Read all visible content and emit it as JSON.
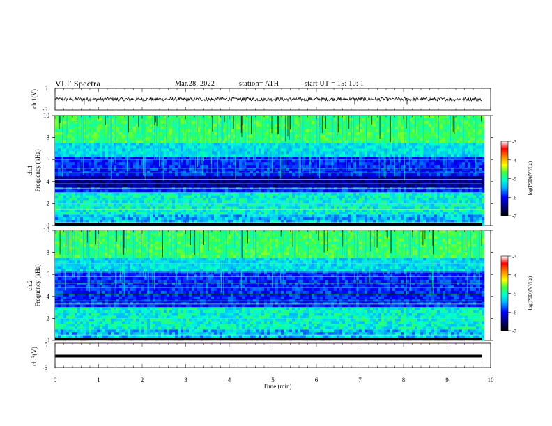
{
  "header": {
    "title": "VLF  Spectra",
    "date": "Mar.28, 2022",
    "station": "station= ATH",
    "start": "start  UT  =    15: 10: 1"
  },
  "chart_data": [
    {
      "type": "line",
      "panel": "ch1-waveform",
      "ylabel": "ch.1(V)",
      "ylim": [
        -5,
        5
      ],
      "yticks": [
        "5",
        "-5"
      ],
      "series": [
        {
          "values_description_only": false,
          "mean": 0.0,
          "amplitude": 0.8,
          "spikes_at_min": [
            0.67,
            3.72,
            6.88,
            8.08
          ]
        }
      ],
      "line_color": "#000000"
    },
    {
      "type": "heatmap",
      "panel": "ch1-spectrogram",
      "ylabel": "ch.1\nFrequency (kHz)",
      "ylim": [
        0,
        10
      ],
      "yticks": [
        "0",
        "2",
        "4",
        "6",
        "8",
        "10"
      ],
      "xlim": [
        0,
        10
      ],
      "data_end_min": 9.8,
      "horizontal_lines_khz": [
        0.3,
        1.0,
        1.5,
        2.0,
        2.3,
        3.0,
        3.4,
        3.8,
        4.2,
        4.8,
        5.2,
        6.0
      ],
      "colorbar": {
        "label": "log(PSD)(V²/Hz)",
        "ticks": [
          "-3",
          "-4",
          "-5",
          "-6",
          "-7"
        ],
        "range": [
          -7,
          -3
        ]
      }
    },
    {
      "type": "heatmap",
      "panel": "ch2-spectrogram",
      "ylabel": "ch.2\nFrequency (kHz)",
      "ylim": [
        0,
        10
      ],
      "yticks": [
        "0",
        "2",
        "4",
        "6",
        "8",
        "10"
      ],
      "xlim": [
        0,
        10
      ],
      "data_end_min": 9.8,
      "horizontal_lines_khz": [
        0.5,
        1.0,
        1.5,
        2.0,
        2.5,
        3.0,
        3.3,
        3.6,
        4.2,
        4.8,
        5.2,
        5.8,
        6.2,
        7.0
      ],
      "colorbar": {
        "label": "log(PSD)(V²/Hz)",
        "ticks": [
          "-3",
          "-4",
          "-5",
          "-6",
          "-7"
        ],
        "range": [
          -7,
          -3
        ]
      }
    },
    {
      "type": "line",
      "panel": "ch3-waveform",
      "ylabel": "ch.3(V)",
      "ylim": [
        -5,
        5
      ],
      "yticks": [
        "5",
        "0",
        "-5"
      ],
      "series": [
        {
          "constant": -1.5
        }
      ],
      "line_color": "#000000"
    }
  ],
  "xaxis": {
    "label": "Time  (min)",
    "ticks": [
      "0",
      "1",
      "2",
      "3",
      "4",
      "5",
      "6",
      "7",
      "8",
      "9",
      "10"
    ],
    "xlim": [
      0,
      10
    ]
  },
  "colormap": [
    "#000000",
    "#000066",
    "#0000ff",
    "#00b0ff",
    "#00ffff",
    "#00ff80",
    "#80ff00",
    "#ffff00",
    "#ff8000",
    "#ff0000",
    "#ffffff"
  ]
}
